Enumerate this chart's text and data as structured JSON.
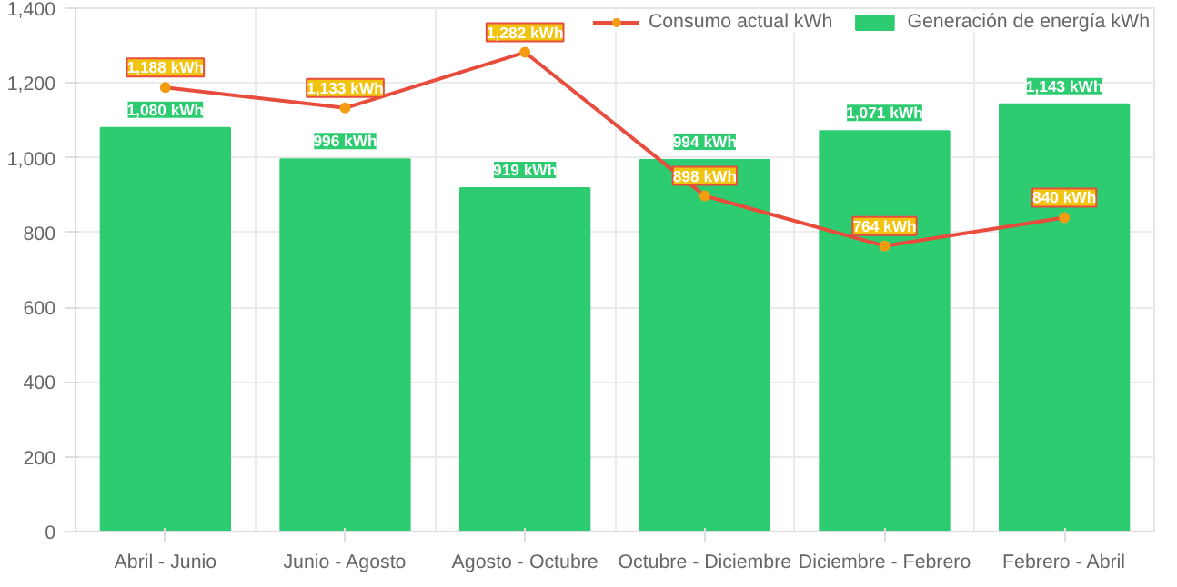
{
  "chart_data": {
    "type": "bar",
    "categories": [
      "Abril - Junio",
      "Junio - Agosto",
      "Agosto - Octubre",
      "Octubre - Diciembre",
      "Diciembre - Febrero",
      "Febrero - Abril"
    ],
    "series": [
      {
        "name": "Consumo actual kWh",
        "type": "line",
        "color": "#e74c3c",
        "values": [
          1188,
          1133,
          1282,
          898,
          764,
          840
        ],
        "value_labels": [
          "1,188 kWh",
          "1,133 kWh",
          "1,282 kWh",
          "898 kWh",
          "764 kWh",
          "840 kWh"
        ]
      },
      {
        "name": "Generación de energía kWh",
        "color": "#2ecc71",
        "values": [
          1080,
          996,
          919,
          994,
          1071,
          1143
        ],
        "value_labels": [
          "1,080 kWh",
          "996 kWh",
          "919 kWh",
          "994 kWh",
          "1,071 kWh",
          "1,143 kWh"
        ]
      }
    ],
    "ylim": [
      0,
      1400
    ],
    "yticks": [
      0,
      {
        "value": 200,
        "label": "200"
      },
      {
        "value": 400,
        "label": "400"
      },
      {
        "value": 600,
        "label": "600"
      },
      {
        "value": 800,
        "label": "800"
      },
      {
        "value": 1000,
        "label": "1,000"
      },
      {
        "value": 1200,
        "label": "1,200"
      },
      {
        "value": 1400,
        "label": "1,400"
      }
    ],
    "grid": true,
    "legend": "top right",
    "marker": "circle"
  }
}
